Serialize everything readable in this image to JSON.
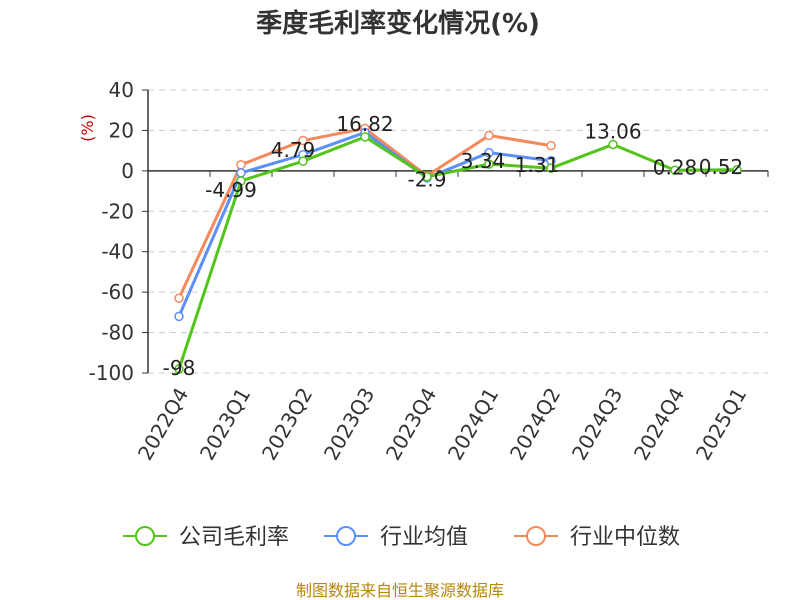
{
  "chart_data": {
    "type": "line",
    "title": "季度毛利率变化情况(%)",
    "ylabel": "(%)",
    "ylim": [
      -100,
      40
    ],
    "yticks": [
      40,
      20,
      0,
      -20,
      -40,
      -60,
      -80,
      -100
    ],
    "grid": true,
    "legend_position": "bottom",
    "categories": [
      "2022Q4",
      "2023Q1",
      "2023Q2",
      "2023Q3",
      "2023Q4",
      "2024Q1",
      "2024Q2",
      "2024Q3",
      "2024Q4",
      "2025Q1"
    ],
    "series": [
      {
        "name": "公司毛利率",
        "color": "#52c41a",
        "values": [
          -98,
          -4.99,
          4.79,
          16.82,
          -2.9,
          3.34,
          1.31,
          13.06,
          0.28,
          0.52
        ],
        "labels": [
          "-98",
          "-4.99",
          "4.79",
          "16.82",
          "-2.9",
          "3.34",
          "1.31",
          "13.06",
          "0.28",
          "0.52"
        ]
      },
      {
        "name": "行业均值",
        "color": "#5b8ff9",
        "values": [
          -72,
          -1,
          8,
          19,
          -3.5,
          9,
          5,
          null,
          null,
          null
        ]
      },
      {
        "name": "行业中位数",
        "color": "#f4895b",
        "values": [
          -63,
          3,
          15,
          21,
          -2.5,
          17.5,
          12.5,
          null,
          null,
          null
        ]
      }
    ],
    "source": "制图数据来自恒生聚源数据库"
  }
}
